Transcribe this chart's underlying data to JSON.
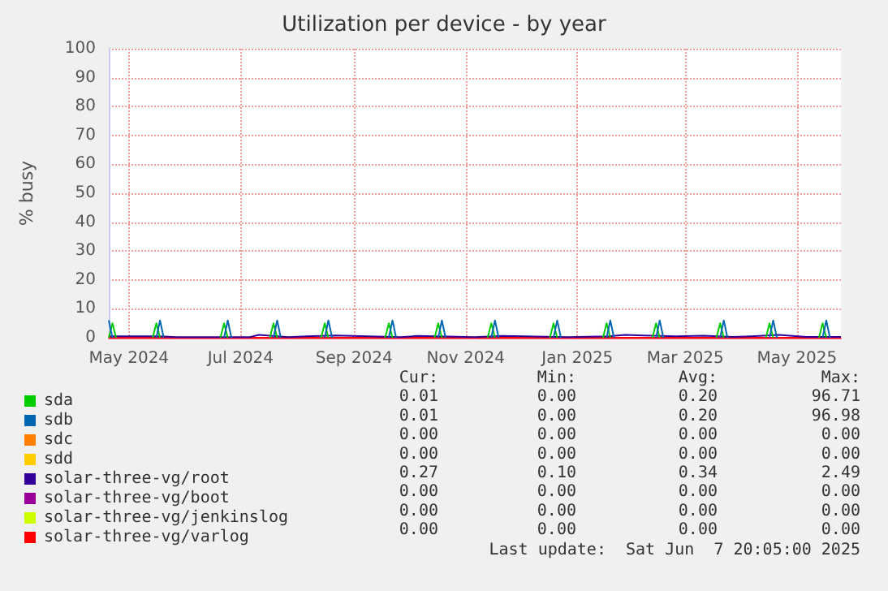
{
  "chart_data": {
    "type": "line",
    "title": "Utilization per device - by year",
    "ylabel": "% busy",
    "xlim": [
      "2024-05-04",
      "2025-06-08"
    ],
    "xticks": [
      {
        "value": "2024-05-15",
        "label": "May 2024"
      },
      {
        "value": "2024-07-15",
        "label": "Jul 2024"
      },
      {
        "value": "2024-09-15",
        "label": "Sep 2024"
      },
      {
        "value": "2024-11-15",
        "label": "Nov 2024"
      },
      {
        "value": "2025-01-15",
        "label": "Jan 2025"
      },
      {
        "value": "2025-03-15",
        "label": "Mar 2025"
      },
      {
        "value": "2025-05-15",
        "label": "May 2025"
      }
    ],
    "ylim": [
      0,
      100
    ],
    "yticks": [
      0,
      10,
      20,
      30,
      40,
      50,
      60,
      70,
      80,
      90,
      100
    ],
    "grid": true,
    "legend": "bottom left",
    "marker": "none",
    "line_style": "solid",
    "series": [
      {
        "name": "sda",
        "color": "#00cc00",
        "x": [
          "2024-05-04",
          "2024-05-06",
          "2024-05-08",
          "2024-05-09",
          "2024-05-28",
          "2024-05-30",
          "2024-06-01",
          "2024-06-02",
          "2024-07-04",
          "2024-07-06",
          "2024-07-08",
          "2024-07-09",
          "2024-07-31",
          "2024-08-02",
          "2024-08-04",
          "2024-08-05",
          "2024-08-28",
          "2024-08-30",
          "2024-09-01",
          "2024-09-02",
          "2024-10-02",
          "2024-10-04",
          "2024-10-06",
          "2024-10-07",
          "2024-10-29",
          "2024-10-31",
          "2024-11-02",
          "2024-11-03",
          "2024-11-27",
          "2024-11-29",
          "2024-12-01",
          "2024-12-02",
          "2024-12-31",
          "2025-01-02",
          "2025-01-04",
          "2025-01-05",
          "2025-01-29",
          "2025-01-31",
          "2025-02-02",
          "2025-02-03",
          "2025-02-25",
          "2025-02-27",
          "2025-03-01",
          "2025-03-02",
          "2025-04-01",
          "2025-04-03",
          "2025-04-05",
          "2025-04-06",
          "2025-04-28",
          "2025-04-30",
          "2025-05-02",
          "2025-05-03",
          "2025-05-27",
          "2025-05-29",
          "2025-05-31"
        ],
        "values": [
          0,
          5,
          0,
          null,
          0,
          5,
          0,
          null,
          0,
          5,
          0,
          null,
          0,
          5,
          0,
          null,
          0,
          5,
          0,
          null,
          0,
          5,
          0,
          null,
          0,
          5,
          0,
          null,
          0,
          5,
          0,
          null,
          0,
          5,
          0,
          null,
          0,
          5,
          0,
          null,
          0,
          5,
          0,
          null,
          0,
          5,
          0,
          null,
          0,
          5,
          0,
          null,
          0,
          5,
          0
        ]
      },
      {
        "name": "sdb",
        "color": "#0066b3",
        "x": [
          "2024-05-04",
          "2024-05-06",
          "2024-05-07",
          "2024-05-30",
          "2024-06-01",
          "2024-06-03",
          "2024-06-04",
          "2024-07-06",
          "2024-07-08",
          "2024-07-10",
          "2024-07-11",
          "2024-08-02",
          "2024-08-04",
          "2024-08-06",
          "2024-08-07",
          "2024-08-30",
          "2024-09-01",
          "2024-09-03",
          "2024-09-04",
          "2024-10-04",
          "2024-10-06",
          "2024-10-08",
          "2024-10-09",
          "2024-10-31",
          "2024-11-02",
          "2024-11-04",
          "2024-11-05",
          "2024-11-29",
          "2024-12-01",
          "2024-12-03",
          "2024-12-04",
          "2025-01-02",
          "2025-01-04",
          "2025-01-06",
          "2025-01-07",
          "2025-01-31",
          "2025-02-02",
          "2025-02-04",
          "2025-02-05",
          "2025-02-27",
          "2025-03-01",
          "2025-03-03",
          "2025-03-04",
          "2025-04-03",
          "2025-04-05",
          "2025-04-07",
          "2025-04-08",
          "2025-04-30",
          "2025-05-02",
          "2025-05-04",
          "2025-05-05",
          "2025-05-29",
          "2025-05-31",
          "2025-06-02"
        ],
        "values": [
          6,
          0,
          null,
          0,
          6,
          0,
          null,
          0,
          6,
          0,
          null,
          0,
          6,
          0,
          null,
          0,
          6,
          0,
          null,
          0,
          6,
          0,
          null,
          0,
          6,
          0,
          null,
          0,
          6,
          0,
          null,
          0,
          6,
          0,
          null,
          0,
          6,
          0,
          null,
          0,
          6,
          0,
          null,
          0,
          6,
          0,
          null,
          0,
          6,
          0,
          null,
          0,
          6,
          0
        ]
      },
      {
        "name": "sdc",
        "color": "#ff8000"
      },
      {
        "name": "sdd",
        "color": "#ffcc00"
      },
      {
        "name": "solar-three-vg/root",
        "color": "#330099",
        "x": [
          "2024-05-04",
          "2024-05-10",
          "2024-06-01",
          "2024-06-10",
          "2024-07-20",
          "2024-07-25",
          "2024-08-10",
          "2024-08-20",
          "2024-09-05",
          "2024-10-10",
          "2024-10-20",
          "2024-11-20",
          "2024-12-05",
          "2025-01-10",
          "2025-02-01",
          "2025-02-10",
          "2025-02-20",
          "2025-03-10",
          "2025-03-25",
          "2025-04-10",
          "2025-04-20",
          "2025-05-05",
          "2025-05-20",
          "2025-06-08"
        ],
        "values": [
          0.5,
          0.5,
          0.5,
          0.2,
          0.2,
          1,
          0.2,
          0.5,
          0.8,
          0.2,
          0.6,
          0.2,
          0.6,
          0.2,
          0.5,
          1,
          0.8,
          0.5,
          0.7,
          0.3,
          0.5,
          1,
          0.3,
          0.3
        ]
      },
      {
        "name": "solar-three-vg/boot",
        "color": "#990099"
      },
      {
        "name": "solar-three-vg/jenkinslog",
        "color": "#ccff00"
      },
      {
        "name": "solar-three-vg/varlog",
        "color": "#ff0000",
        "x": [
          "2024-05-04",
          "2025-06-08"
        ],
        "values": [
          0,
          0
        ]
      }
    ],
    "annotations": [
      "Cur:",
      "Min:",
      "Avg:",
      "Max:",
      "0.01",
      "0.00",
      "0.20",
      "96.71",
      "0.01",
      "0.00",
      "0.20",
      "96.98",
      "0.00",
      "0.00",
      "0.00",
      "0.00",
      "0.00",
      "0.00",
      "0.00",
      "0.00",
      "0.27",
      "0.10",
      "0.34",
      "2.49",
      "0.00",
      "0.00",
      "0.00",
      "0.00",
      "0.00",
      "0.00",
      "0.00",
      "0.00",
      "0.00",
      "0.00",
      "0.00",
      "0.00",
      "Last update:  Sat Jun  7 20:05:00 2025"
    ]
  }
}
